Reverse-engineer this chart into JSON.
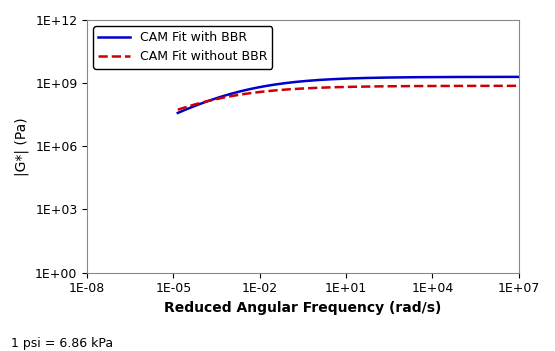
{
  "title": "",
  "xlabel": "Reduced Angular Frequency (rad/s)",
  "ylabel": "|G*| (Pa)",
  "note": "1 psi = 6.86 kPa",
  "xlim_log": [
    -8,
    7
  ],
  "ylim_log": [
    0,
    12
  ],
  "xticks_log": [
    -8,
    -5,
    -2,
    1,
    4,
    7
  ],
  "yticks_log": [
    0,
    3,
    6,
    9,
    12
  ],
  "line_with_bbr": {
    "label": "CAM Fit with BBR",
    "color": "#0000CC",
    "linestyle": "-",
    "linewidth": 1.8,
    "x_start_log": -4.85,
    "x_end_log": 7.0,
    "Gg": 2000000000.0,
    "wc": 0.0008,
    "me": 0.28,
    "kappa": 2.8
  },
  "line_without_bbr": {
    "label": "CAM Fit without BBR",
    "color": "#CC0000",
    "linestyle": "--",
    "linewidth": 1.8,
    "x_start_log": -4.85,
    "x_end_log": 7.0,
    "Gg": 750000000.0,
    "wc": 5e-05,
    "me": 0.26,
    "kappa": 3.0
  },
  "legend_loc": "upper left",
  "legend_fontsize": 9,
  "axis_fontsize": 10,
  "tick_fontsize": 9,
  "note_fontsize": 9,
  "bg_color": "#f0f0f0"
}
